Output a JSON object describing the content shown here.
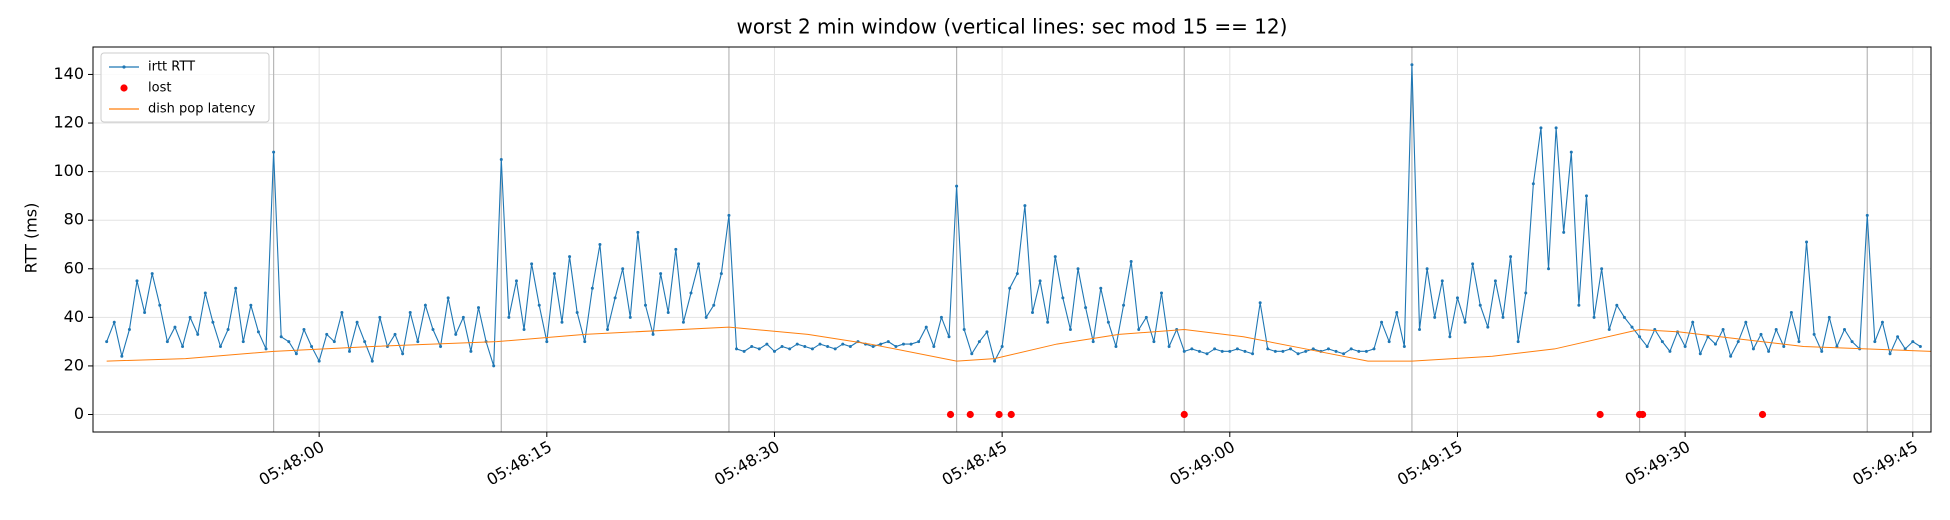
{
  "chart_data": {
    "type": "line",
    "title": "worst 2 min window (vertical lines: sec mod 15 == 12)",
    "y_label": "RTT (ms)",
    "xlim": [
      20865.1,
      20986.2
    ],
    "ylim": [
      -7.2,
      151.3
    ],
    "yticks": [
      0,
      20,
      40,
      60,
      80,
      100,
      120,
      140
    ],
    "xticks": [
      {
        "value": 20880,
        "label": "05:48:00"
      },
      {
        "value": 20895,
        "label": "05:48:15"
      },
      {
        "value": 20910,
        "label": "05:48:30"
      },
      {
        "value": 20925,
        "label": "05:48:45"
      },
      {
        "value": 20940,
        "label": "05:49:00"
      },
      {
        "value": 20955,
        "label": "05:49:15"
      },
      {
        "value": 20970,
        "label": "05:49:30"
      },
      {
        "value": 20985,
        "label": "05:49:45"
      }
    ],
    "vlines": [
      20877,
      20892,
      20907,
      20922,
      20937,
      20952,
      20967,
      20982
    ],
    "grid": true,
    "legend": "upper left",
    "series": [
      {
        "name": "irtt RTT",
        "color": "#1f77b4",
        "style": "line-marker",
        "x": [
          20866,
          20866.5,
          20867,
          20867.5,
          20868,
          20868.5,
          20869,
          20869.5,
          20870,
          20870.5,
          20871,
          20871.5,
          20872,
          20872.5,
          20873,
          20873.5,
          20874,
          20874.5,
          20875,
          20875.5,
          20876,
          20876.5,
          20877,
          20877.5,
          20878,
          20878.5,
          20879,
          20879.5,
          20880,
          20880.5,
          20881,
          20881.5,
          20882,
          20882.5,
          20883,
          20883.5,
          20884,
          20884.5,
          20885,
          20885.5,
          20886,
          20886.5,
          20887,
          20887.5,
          20888,
          20888.5,
          20889,
          20889.5,
          20890,
          20890.5,
          20891,
          20891.5,
          20892,
          20892.5,
          20893,
          20893.5,
          20894,
          20894.5,
          20895,
          20895.5,
          20896,
          20896.5,
          20897,
          20897.5,
          20898,
          20898.5,
          20899,
          20899.5,
          20900,
          20900.5,
          20901,
          20901.5,
          20902,
          20902.5,
          20903,
          20903.5,
          20904,
          20904.5,
          20905,
          20905.5,
          20906,
          20906.5,
          20907,
          20907.5,
          20908,
          20908.5,
          20909,
          20909.5,
          20910,
          20910.5,
          20911,
          20911.5,
          20912,
          20912.5,
          20913,
          20913.5,
          20914,
          20914.5,
          20915,
          20915.5,
          20916,
          20916.5,
          20917,
          20917.5,
          20918,
          20918.5,
          20919,
          20919.5,
          20920,
          20920.5,
          20921,
          20921.5,
          20922,
          20922.5,
          20923,
          20923.5,
          20924,
          20924.5,
          20925,
          20925.5,
          20926,
          20926.5,
          20927,
          20927.5,
          20928,
          20928.5,
          20929,
          20929.5,
          20930,
          20930.5,
          20931,
          20931.5,
          20932,
          20932.5,
          20933,
          20933.5,
          20934,
          20934.5,
          20935,
          20935.5,
          20936,
          20936.5,
          20937,
          20937.5,
          20938,
          20938.5,
          20939,
          20939.5,
          20940,
          20940.5,
          20941,
          20941.5,
          20942,
          20942.5,
          20943,
          20943.5,
          20944,
          20944.5,
          20945,
          20945.5,
          20946,
          20946.5,
          20947,
          20947.5,
          20948,
          20948.5,
          20949,
          20949.5,
          20950,
          20950.5,
          20951,
          20951.5,
          20952,
          20952.5,
          20953,
          20953.5,
          20954,
          20954.5,
          20955,
          20955.5,
          20956,
          20956.5,
          20957,
          20957.5,
          20958,
          20958.5,
          20959,
          20959.5,
          20960,
          20960.5,
          20961,
          20961.5,
          20962,
          20962.5,
          20963,
          20963.5,
          20964,
          20964.5,
          20965,
          20965.5,
          20966,
          20966.5,
          20967,
          20967.5,
          20968,
          20968.5,
          20969,
          20969.5,
          20970,
          20970.5,
          20971,
          20971.5,
          20972,
          20972.5,
          20973,
          20973.5,
          20974,
          20974.5,
          20975,
          20975.5,
          20976,
          20976.5,
          20977,
          20977.5,
          20978,
          20978.5,
          20979,
          20979.5,
          20980,
          20980.5,
          20981,
          20981.5,
          20982,
          20982.5,
          20983,
          20983.5,
          20984,
          20984.5,
          20985,
          20985.5
        ],
        "values": [
          30,
          38,
          24,
          35,
          55,
          42,
          58,
          45,
          30,
          36,
          28,
          40,
          33,
          50,
          38,
          28,
          35,
          52,
          30,
          45,
          34,
          27,
          108,
          32,
          30,
          25,
          35,
          28,
          22,
          33,
          30,
          42,
          26,
          38,
          30,
          22,
          40,
          28,
          33,
          25,
          42,
          30,
          45,
          35,
          28,
          48,
          33,
          40,
          26,
          44,
          30,
          20,
          105,
          40,
          55,
          35,
          62,
          45,
          30,
          58,
          38,
          65,
          42,
          30,
          52,
          70,
          35,
          48,
          60,
          40,
          75,
          45,
          33,
          58,
          42,
          68,
          38,
          50,
          62,
          40,
          45,
          58,
          82,
          27,
          26,
          28,
          27,
          29,
          26,
          28,
          27,
          29,
          28,
          27,
          29,
          28,
          27,
          29,
          28,
          30,
          29,
          28,
          29,
          30,
          28,
          29,
          29,
          30,
          36,
          28,
          40,
          32,
          94,
          35,
          25,
          30,
          34,
          22,
          28,
          52,
          58,
          86,
          42,
          55,
          38,
          65,
          48,
          35,
          60,
          44,
          30,
          52,
          38,
          28,
          45,
          63,
          35,
          40,
          30,
          50,
          28,
          35,
          26,
          27,
          26,
          25,
          27,
          26,
          26,
          27,
          26,
          25,
          46,
          27,
          26,
          26,
          27,
          25,
          26,
          27,
          26,
          27,
          26,
          25,
          27,
          26,
          26,
          27,
          38,
          30,
          42,
          28,
          144,
          35,
          60,
          40,
          55,
          32,
          48,
          38,
          62,
          45,
          36,
          55,
          40,
          65,
          30,
          50,
          95,
          118,
          60,
          118,
          75,
          108,
          45,
          90,
          40,
          60,
          35,
          45,
          40,
          36,
          32,
          28,
          35,
          30,
          26,
          34,
          28,
          38,
          25,
          32,
          29,
          35,
          24,
          30,
          38,
          27,
          33,
          26,
          35,
          28,
          42,
          30,
          71,
          33,
          26,
          40,
          28,
          35,
          30,
          27,
          82,
          30,
          38,
          25,
          32,
          27,
          30,
          28
        ]
      },
      {
        "name": "lost",
        "color": "#ff0000",
        "style": "scatter",
        "x": [
          20921.6,
          20922.9,
          20924.8,
          20925.6,
          20937.0,
          20964.4,
          20967.0,
          20967.2,
          20975.1
        ],
        "values": [
          0,
          0,
          0,
          0,
          0,
          0,
          0,
          0,
          0
        ]
      },
      {
        "name": "dish pop latency",
        "color": "#ff7f0e",
        "style": "line",
        "x": [
          20866,
          20871.2,
          20877,
          20883.5,
          20891.7,
          20897.5,
          20907,
          20912.2,
          20916.3,
          20922,
          20924.5,
          20928.6,
          20932.7,
          20937,
          20940.9,
          20945,
          20949.1,
          20952,
          20957.3,
          20961.4,
          20967,
          20969.6,
          20973.7,
          20977.8,
          20981.9,
          20986.2
        ],
        "values": [
          22,
          23,
          26,
          28,
          30,
          33,
          36,
          33,
          29,
          22,
          23,
          29,
          33,
          35,
          32,
          27,
          22,
          22,
          24,
          27,
          35,
          34,
          31,
          28,
          27,
          26
        ]
      }
    ]
  }
}
